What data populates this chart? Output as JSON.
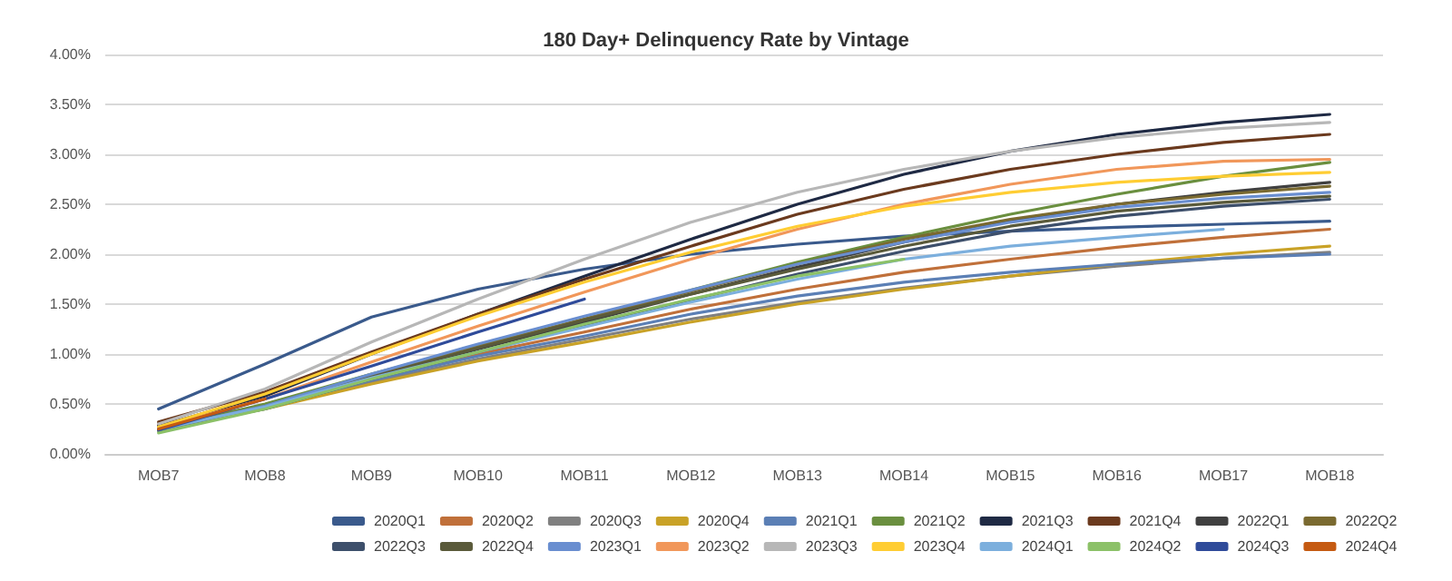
{
  "chart_data": {
    "type": "line",
    "title": "180 Day+ Delinquency Rate by Vintage",
    "categories": [
      "MOB7",
      "MOB8",
      "MOB9",
      "MOB10",
      "MOB11",
      "MOB12",
      "MOB13",
      "MOB14",
      "MOB15",
      "MOB16",
      "MOB17",
      "MOB18"
    ],
    "ylim": [
      0,
      4
    ],
    "yticks": [
      {
        "value": 0,
        "label": "0.00%"
      },
      {
        "value": 0.5,
        "label": "0.50%"
      },
      {
        "value": 1,
        "label": "1.00%"
      },
      {
        "value": 1.5,
        "label": "1.50%"
      },
      {
        "value": 2,
        "label": "2.00%"
      },
      {
        "value": 2.5,
        "label": "2.50%"
      },
      {
        "value": 3,
        "label": "3.00%"
      },
      {
        "value": 3.5,
        "label": "3.50%"
      },
      {
        "value": 4,
        "label": "4.00%"
      }
    ],
    "grid": "y",
    "legend": "bottom",
    "marker": "none",
    "line_style": "solid",
    "series": [
      {
        "name": "2020Q1",
        "color": "#3a5a8c",
        "values": [
          0.45,
          0.9,
          1.37,
          1.65,
          1.85,
          2.0,
          2.1,
          2.18,
          2.23,
          2.27,
          2.3,
          2.33
        ]
      },
      {
        "name": "2020Q2",
        "color": "#c0703a",
        "values": [
          0.3,
          0.48,
          0.75,
          1.0,
          1.22,
          1.45,
          1.65,
          1.82,
          1.95,
          2.07,
          2.17,
          2.25
        ]
      },
      {
        "name": "2020Q3",
        "color": "#808080",
        "values": [
          0.28,
          0.46,
          0.72,
          0.95,
          1.15,
          1.35,
          1.52,
          1.66,
          1.78,
          1.88,
          1.96,
          2.02
        ]
      },
      {
        "name": "2020Q4",
        "color": "#c9a227",
        "values": [
          0.26,
          0.45,
          0.7,
          0.93,
          1.12,
          1.32,
          1.5,
          1.65,
          1.78,
          1.9,
          2.0,
          2.08
        ]
      },
      {
        "name": "2021Q1",
        "color": "#5b7fb5",
        "values": [
          0.27,
          0.47,
          0.74,
          0.98,
          1.18,
          1.4,
          1.58,
          1.72,
          1.82,
          1.9,
          1.96,
          2.0
        ]
      },
      {
        "name": "2021Q2",
        "color": "#6a8f3f",
        "values": [
          0.25,
          0.5,
          0.8,
          1.08,
          1.35,
          1.64,
          1.92,
          2.17,
          2.4,
          2.6,
          2.78,
          2.92
        ]
      },
      {
        "name": "2021Q3",
        "color": "#1f2a44",
        "values": [
          0.28,
          0.58,
          1.0,
          1.4,
          1.78,
          2.15,
          2.5,
          2.8,
          3.03,
          3.2,
          3.32,
          3.4
        ]
      },
      {
        "name": "2021Q4",
        "color": "#6b3a1e",
        "values": [
          0.32,
          0.62,
          1.02,
          1.4,
          1.75,
          2.08,
          2.4,
          2.65,
          2.85,
          3.0,
          3.12,
          3.2
        ]
      },
      {
        "name": "2022Q1",
        "color": "#404040",
        "values": [
          0.24,
          0.46,
          0.76,
          1.05,
          1.32,
          1.6,
          1.87,
          2.12,
          2.33,
          2.5,
          2.62,
          2.72
        ]
      },
      {
        "name": "2022Q2",
        "color": "#7a6a30",
        "values": [
          0.25,
          0.47,
          0.78,
          1.07,
          1.35,
          1.63,
          1.9,
          2.15,
          2.35,
          2.5,
          2.6,
          2.68
        ]
      },
      {
        "name": "2022Q3",
        "color": "#3d4f6b",
        "values": [
          0.24,
          0.45,
          0.75,
          1.02,
          1.28,
          1.54,
          1.8,
          2.03,
          2.23,
          2.38,
          2.48,
          2.55
        ]
      },
      {
        "name": "2022Q4",
        "color": "#5a5a3a",
        "values": [
          0.23,
          0.46,
          0.77,
          1.06,
          1.34,
          1.6,
          1.85,
          2.08,
          2.28,
          2.43,
          2.52,
          2.58
        ]
      },
      {
        "name": "2023Q1",
        "color": "#698ed0",
        "values": [
          0.24,
          0.48,
          0.8,
          1.1,
          1.38,
          1.64,
          1.9,
          2.12,
          2.32,
          2.47,
          2.56,
          2.62
        ]
      },
      {
        "name": "2023Q2",
        "color": "#f1975a",
        "values": [
          0.26,
          0.55,
          0.92,
          1.28,
          1.62,
          1.95,
          2.25,
          2.5,
          2.7,
          2.85,
          2.93,
          2.95
        ]
      },
      {
        "name": "2023Q3",
        "color": "#b7b7b7",
        "values": [
          0.3,
          0.65,
          1.12,
          1.55,
          1.95,
          2.32,
          2.62,
          2.85,
          3.03,
          3.17,
          3.26,
          3.32
        ]
      },
      {
        "name": "2023Q4",
        "color": "#ffcd33",
        "values": [
          0.27,
          0.6,
          1.0,
          1.38,
          1.72,
          2.02,
          2.28,
          2.48,
          2.62,
          2.72,
          2.78,
          2.82
        ]
      },
      {
        "name": "2024Q1",
        "color": "#7cafdd",
        "values": [
          0.25,
          0.47,
          0.76,
          1.02,
          1.27,
          1.52,
          1.75,
          1.95,
          2.08,
          2.17,
          2.25,
          null
        ]
      },
      {
        "name": "2024Q2",
        "color": "#8cc168",
        "values": [
          0.21,
          0.45,
          0.75,
          1.02,
          1.3,
          1.55,
          1.78,
          1.95,
          null,
          null,
          null,
          null
        ]
      },
      {
        "name": "2024Q3",
        "color": "#2f4b9a",
        "values": [
          0.24,
          0.55,
          0.88,
          1.22,
          1.55,
          null,
          null,
          null,
          null,
          null,
          null,
          null
        ]
      },
      {
        "name": "2024Q4",
        "color": "#c55a11",
        "values": [
          0.25,
          0.55,
          null,
          null,
          null,
          null,
          null,
          null,
          null,
          null,
          null,
          null
        ]
      }
    ]
  }
}
